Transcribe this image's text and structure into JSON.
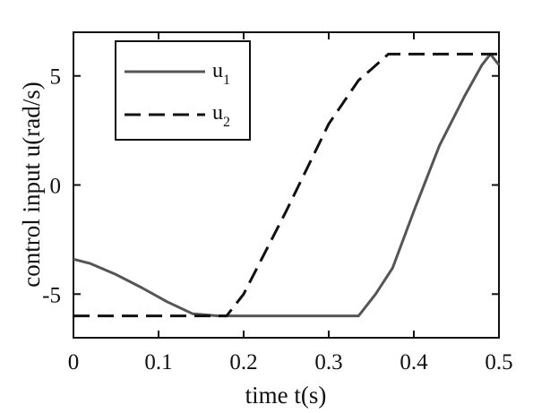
{
  "chart_data": {
    "type": "line",
    "xlabel": "time t(s)",
    "ylabel": "control input u(rad/s)",
    "xlim": [
      0,
      0.5
    ],
    "ylim": [
      -7,
      7
    ],
    "x_ticks": [
      "0",
      "0.1",
      "0.2",
      "0.3",
      "0.4",
      "0.5"
    ],
    "y_ticks": [
      "-5",
      "0",
      "5"
    ],
    "grid": false,
    "legend_position": "top-left",
    "series": [
      {
        "name": "u1",
        "legend_base": "u",
        "legend_sub": "1",
        "style": "solid",
        "color": "#555555",
        "x": [
          0,
          0.02,
          0.05,
          0.08,
          0.11,
          0.14,
          0.17,
          0.2,
          0.25,
          0.3,
          0.335,
          0.355,
          0.375,
          0.4,
          0.43,
          0.46,
          0.48,
          0.49,
          0.5
        ],
        "y": [
          -3.4,
          -3.6,
          -4.1,
          -4.7,
          -5.35,
          -5.9,
          -6.0,
          -6.0,
          -6.0,
          -6.0,
          -6.0,
          -5.0,
          -3.8,
          -1.2,
          1.8,
          4.1,
          5.5,
          6.0,
          5.5
        ]
      },
      {
        "name": "u2",
        "legend_base": "u",
        "legend_sub": "2",
        "style": "dashed",
        "color": "#111111",
        "x": [
          0,
          0.1,
          0.15,
          0.18,
          0.2,
          0.25,
          0.3,
          0.335,
          0.35,
          0.37,
          0.4,
          0.45,
          0.5
        ],
        "y": [
          -6.0,
          -6.0,
          -6.0,
          -6.0,
          -5.0,
          -1.2,
          2.8,
          4.8,
          5.3,
          6.0,
          6.0,
          6.0,
          6.0
        ]
      }
    ]
  }
}
